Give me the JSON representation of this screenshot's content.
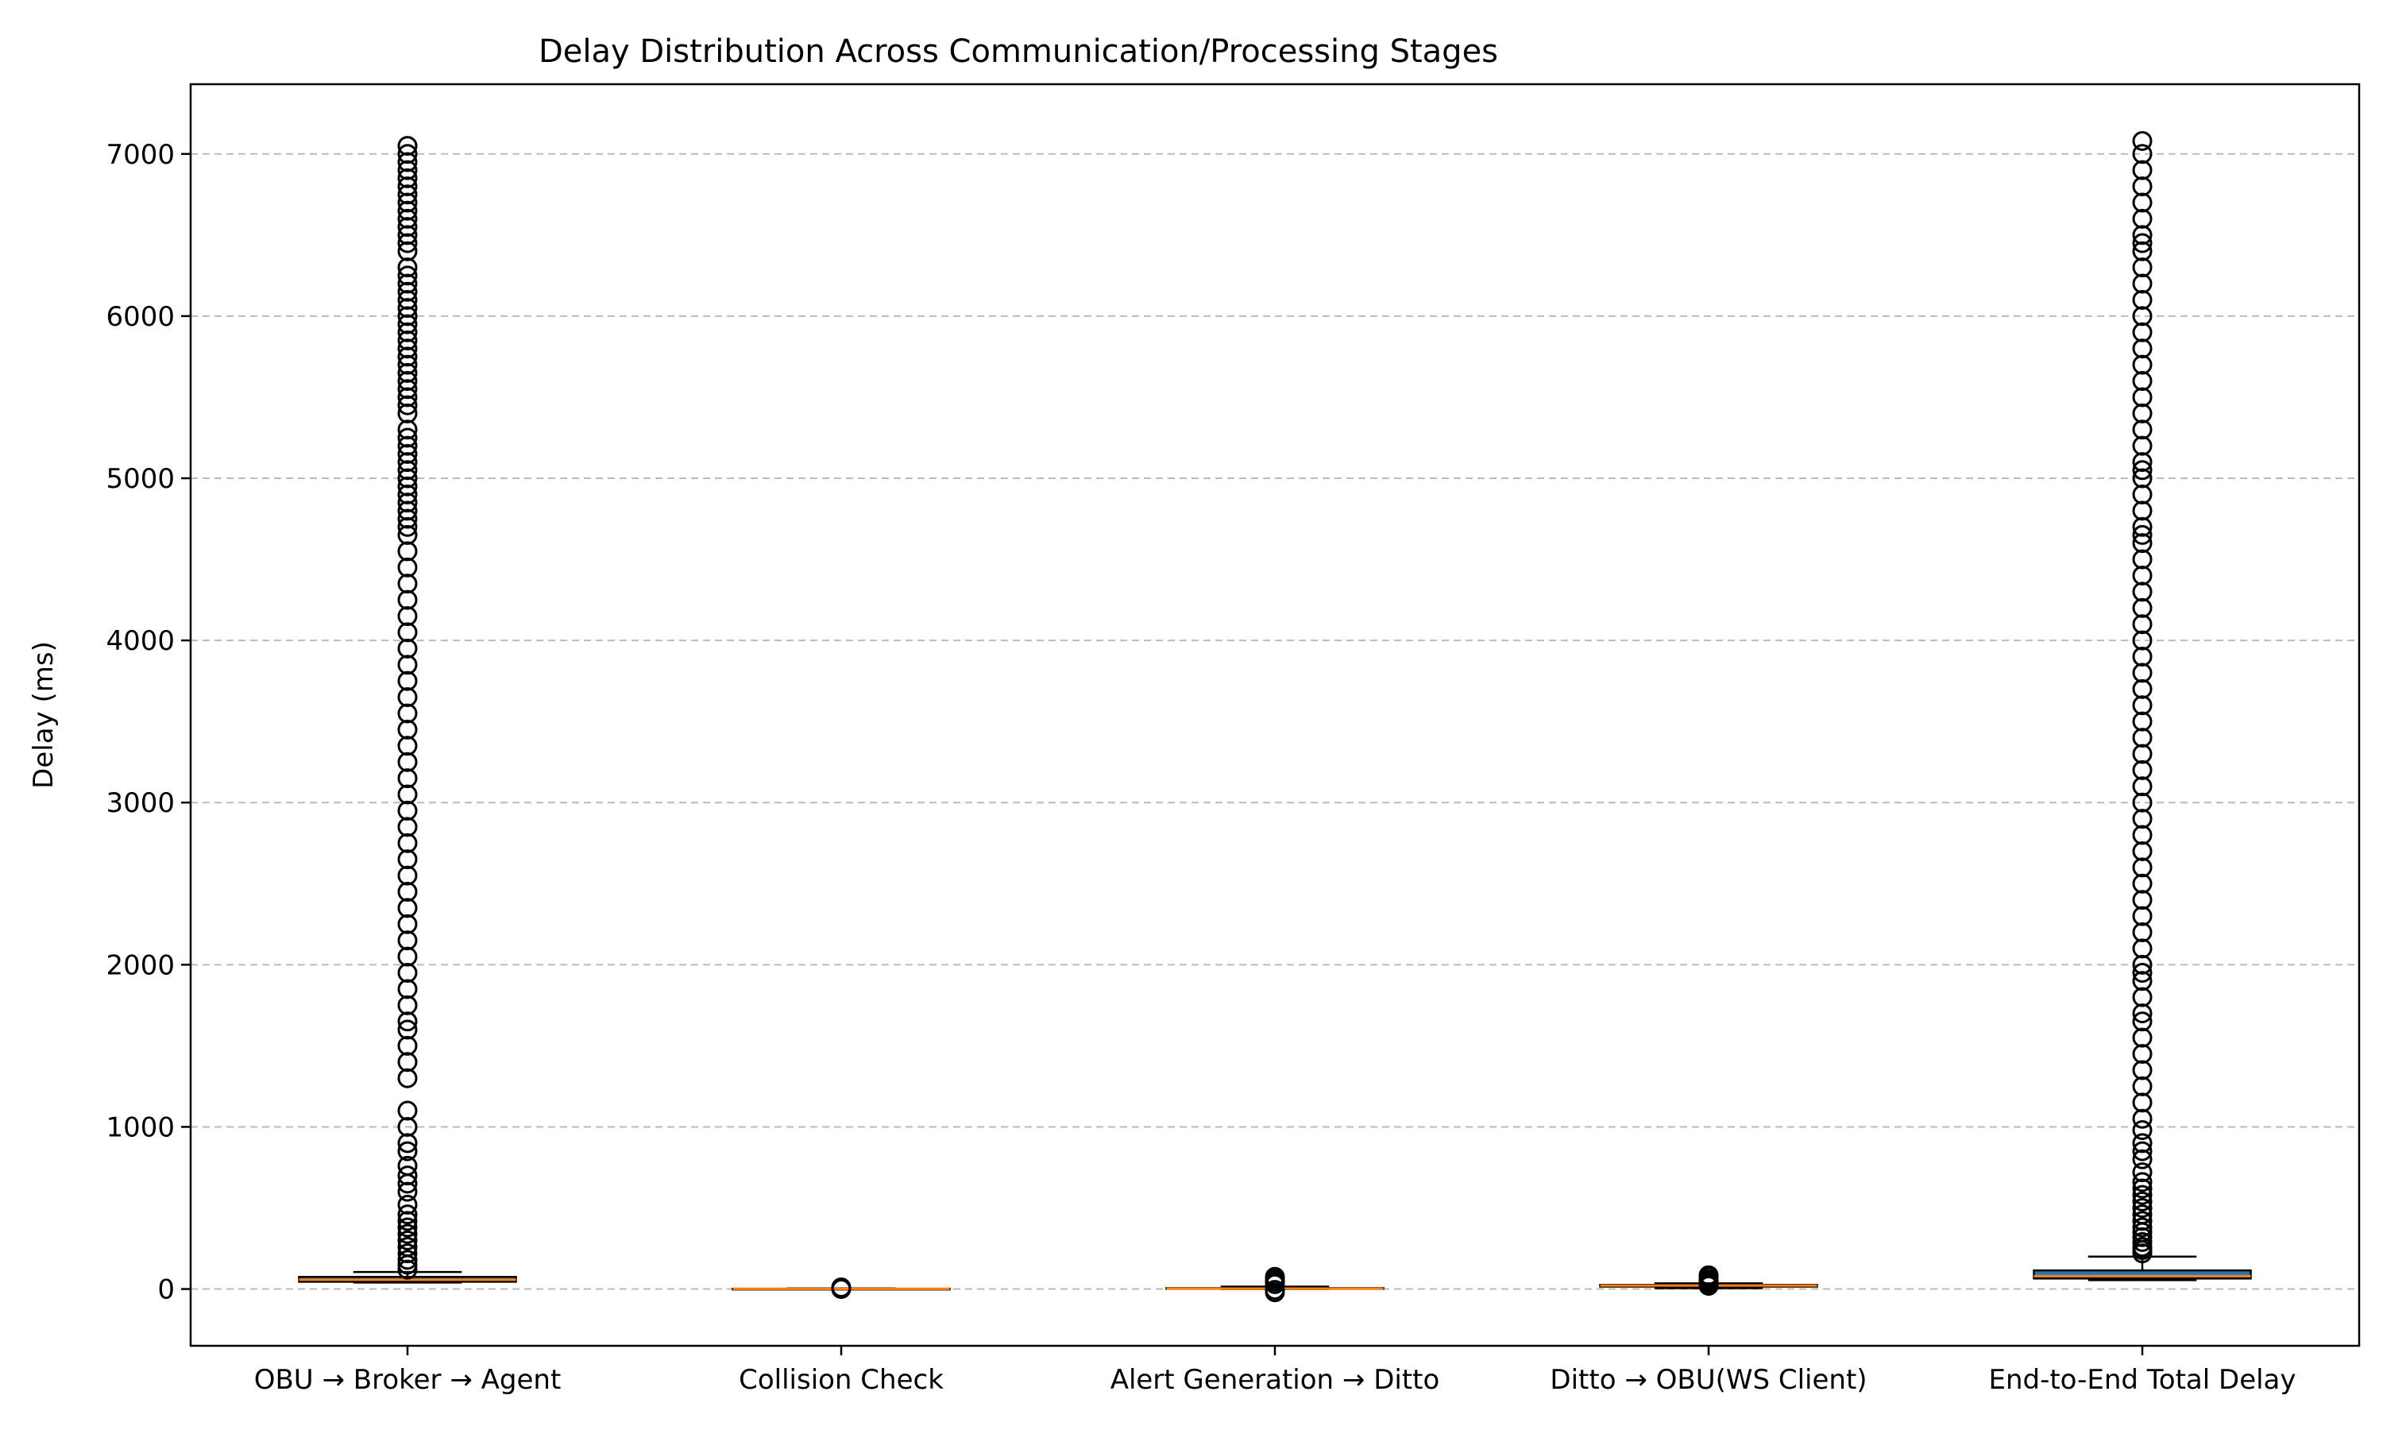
{
  "chart_data": {
    "type": "box",
    "title": "Delay Distribution Across Communication/Processing Stages",
    "xlabel": "",
    "ylabel": "Delay (ms)",
    "ylim": [
      -350,
      7430
    ],
    "yticks": [
      0,
      1000,
      2000,
      3000,
      4000,
      5000,
      6000,
      7000
    ],
    "grid": "y-dashed",
    "categories": [
      "OBU → Broker → Agent",
      "Collision Check",
      "Alert Generation → Ditto",
      "Ditto → OBU(WS Client)",
      "End-to-End Total Delay"
    ],
    "boxes": [
      {
        "whislo": 40,
        "q1": 45,
        "med": 57,
        "q3": 75,
        "whishi": 105,
        "fliers": [
          120,
          150,
          180,
          220,
          260,
          300,
          340,
          380,
          420,
          460,
          520,
          600,
          650,
          700,
          760,
          850,
          900,
          1000,
          1100,
          1300,
          1400,
          1500,
          1600,
          1650,
          1750,
          1850,
          1950,
          2050,
          2150,
          2250,
          2350,
          2450,
          2550,
          2650,
          2750,
          2850,
          2950,
          3050,
          3150,
          3250,
          3350,
          3450,
          3550,
          3650,
          3750,
          3850,
          3950,
          4050,
          4150,
          4250,
          4350,
          4450,
          4550,
          4650,
          4700,
          4750,
          4800,
          4850,
          4900,
          4950,
          5000,
          5050,
          5100,
          5150,
          5200,
          5250,
          5300,
          5400,
          5450,
          5500,
          5550,
          5600,
          5650,
          5700,
          5750,
          5800,
          5850,
          5900,
          5950,
          6000,
          6050,
          6100,
          6150,
          6200,
          6250,
          6300,
          6400,
          6450,
          6500,
          6550,
          6600,
          6650,
          6700,
          6750,
          6800,
          6850,
          6900,
          6950,
          7000,
          7050
        ]
      },
      {
        "whislo": 0,
        "q1": 0,
        "med": 1,
        "q3": 2,
        "whishi": 4,
        "fliers": [
          0,
          5,
          10
        ]
      },
      {
        "whislo": 0,
        "q1": 1,
        "med": 3,
        "q3": 6,
        "whishi": 15,
        "fliers": [
          -20,
          -5,
          30,
          45,
          60,
          75
        ]
      },
      {
        "whislo": 5,
        "q1": 15,
        "med": 22,
        "q3": 26,
        "whishi": 35,
        "fliers": [
          20,
          30,
          40,
          50,
          60,
          75,
          85
        ]
      },
      {
        "whislo": 55,
        "q1": 65,
        "med": 80,
        "q3": 115,
        "whishi": 200,
        "fliers": [
          220,
          240,
          260,
          290,
          320,
          350,
          380,
          420,
          460,
          500,
          540,
          580,
          620,
          660,
          720,
          800,
          850,
          900,
          980,
          1050,
          1150,
          1250,
          1350,
          1450,
          1550,
          1650,
          1700,
          1800,
          1900,
          1950,
          2000,
          2100,
          2200,
          2300,
          2400,
          2500,
          2600,
          2700,
          2800,
          2900,
          3000,
          3100,
          3200,
          3300,
          3400,
          3500,
          3600,
          3700,
          3800,
          3900,
          4000,
          4100,
          4200,
          4300,
          4400,
          4500,
          4600,
          4650,
          4700,
          4800,
          4900,
          5000,
          5050,
          5100,
          5200,
          5300,
          5400,
          5500,
          5600,
          5700,
          5800,
          5900,
          6000,
          6100,
          6200,
          6300,
          6400,
          6450,
          6500,
          6600,
          6700,
          6800,
          6900,
          7000,
          7080
        ]
      }
    ]
  }
}
